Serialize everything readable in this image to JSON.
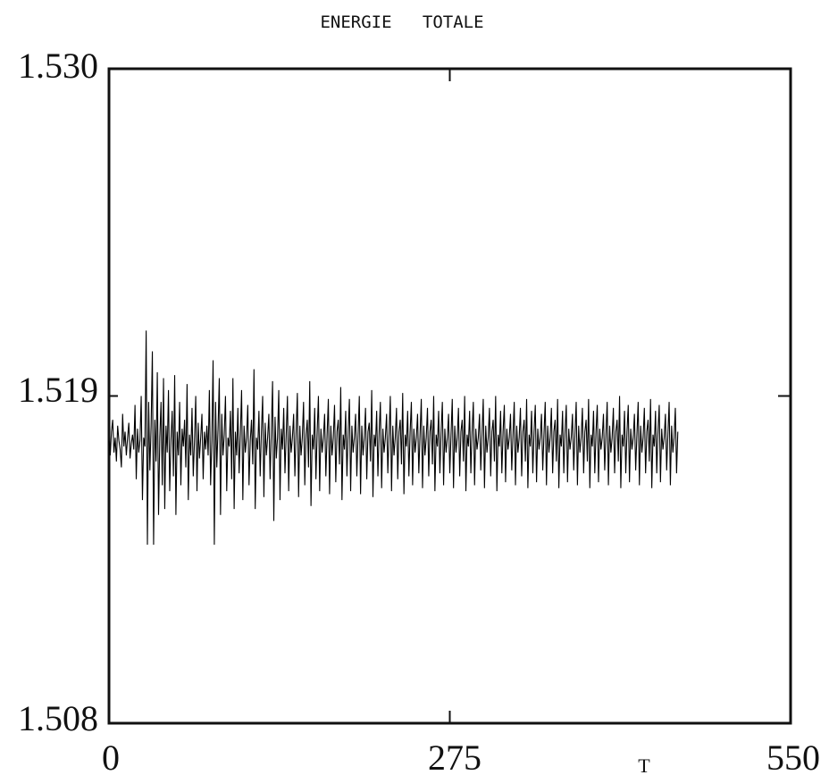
{
  "chart_data": {
    "type": "line",
    "title": "ENERGIE   TOTALE",
    "xlabel": "T",
    "ylabel": "",
    "xlim": [
      0,
      550
    ],
    "ylim": [
      1.508,
      1.53
    ],
    "xticks": [
      "0",
      "275",
      "550"
    ],
    "yticks": [
      "1.530",
      "1.519",
      "1.508"
    ],
    "grid": false,
    "legend": "none",
    "series": [
      {
        "color": "#000000",
        "x_start": 0,
        "x_step": 1,
        "values": [
          1.5175,
          1.517,
          1.5178,
          1.5182,
          1.5171,
          1.5176,
          1.5168,
          1.518,
          1.5175,
          1.5172,
          1.5166,
          1.5184,
          1.5173,
          1.5178,
          1.517,
          1.5176,
          1.5181,
          1.5169,
          1.5174,
          1.5177,
          1.5172,
          1.5187,
          1.5162,
          1.5179,
          1.5171,
          1.5175,
          1.519,
          1.5155,
          1.5176,
          1.5173,
          1.5212,
          1.514,
          1.5188,
          1.5165,
          1.518,
          1.5205,
          1.514,
          1.5182,
          1.5168,
          1.5198,
          1.515,
          1.5176,
          1.5188,
          1.516,
          1.5196,
          1.5152,
          1.518,
          1.5171,
          1.5192,
          1.5158,
          1.5175,
          1.5185,
          1.5163,
          1.5197,
          1.515,
          1.5178,
          1.517,
          1.5188,
          1.516,
          1.5179,
          1.5173,
          1.5182,
          1.5166,
          1.5194,
          1.5155,
          1.5177,
          1.517,
          1.5186,
          1.5163,
          1.5175,
          1.519,
          1.5158,
          1.5181,
          1.5169,
          1.5176,
          1.5184,
          1.5162,
          1.5178,
          1.5172,
          1.518,
          1.517,
          1.5192,
          1.516,
          1.5175,
          1.5202,
          1.514,
          1.5188,
          1.5166,
          1.5179,
          1.5196,
          1.515,
          1.5184,
          1.517,
          1.5177,
          1.519,
          1.5158,
          1.5176,
          1.5173,
          1.5185,
          1.5162,
          1.5196,
          1.5152,
          1.5178,
          1.517,
          1.5186,
          1.5164,
          1.5177,
          1.5192,
          1.5155,
          1.518,
          1.5171,
          1.5176,
          1.5187,
          1.516,
          1.5175,
          1.5182,
          1.5167,
          1.5199,
          1.5152,
          1.5176,
          1.5172,
          1.5185,
          1.5163,
          1.5178,
          1.519,
          1.5156,
          1.5181,
          1.517,
          1.5176,
          1.5184,
          1.5162,
          1.5178,
          1.5195,
          1.5148,
          1.5183,
          1.5169,
          1.5176,
          1.5192,
          1.5155,
          1.5179,
          1.5172,
          1.5186,
          1.5164,
          1.5177,
          1.519,
          1.5158,
          1.518,
          1.5171,
          1.5176,
          1.5184,
          1.5163,
          1.5178,
          1.5191,
          1.5156,
          1.518,
          1.517,
          1.5176,
          1.5188,
          1.516,
          1.5177,
          1.5182,
          1.5166,
          1.5195,
          1.5153,
          1.5177,
          1.5172,
          1.5186,
          1.5162,
          1.5178,
          1.519,
          1.5158,
          1.5179,
          1.5171,
          1.5176,
          1.5184,
          1.5163,
          1.5177,
          1.5189,
          1.5157,
          1.518,
          1.517,
          1.5176,
          1.5187,
          1.5161,
          1.5178,
          1.5182,
          1.5167,
          1.5193,
          1.5155,
          1.5177,
          1.5172,
          1.5185,
          1.5163,
          1.5178,
          1.5189,
          1.5158,
          1.518,
          1.5171,
          1.5176,
          1.5184,
          1.5163,
          1.5177,
          1.519,
          1.5157,
          1.518,
          1.517,
          1.5176,
          1.5186,
          1.5162,
          1.5178,
          1.5181,
          1.5168,
          1.5192,
          1.5156,
          1.5177,
          1.5173,
          1.5185,
          1.5163,
          1.5178,
          1.5188,
          1.5159,
          1.5179,
          1.5171,
          1.5176,
          1.5184,
          1.5164,
          1.5177,
          1.519,
          1.5158,
          1.518,
          1.517,
          1.5176,
          1.5186,
          1.5162,
          1.5178,
          1.5182,
          1.5167,
          1.5191,
          1.5157,
          1.5177,
          1.5173,
          1.5185,
          1.5163,
          1.5178,
          1.5188,
          1.516,
          1.5179,
          1.5171,
          1.5176,
          1.5184,
          1.5164,
          1.5177,
          1.5189,
          1.5159,
          1.518,
          1.517,
          1.5176,
          1.5186,
          1.5163,
          1.5178,
          1.5182,
          1.5167,
          1.519,
          1.5158,
          1.5177,
          1.5173,
          1.5185,
          1.5164,
          1.5178,
          1.5188,
          1.516,
          1.5179,
          1.5171,
          1.5176,
          1.5184,
          1.5164,
          1.5177,
          1.5189,
          1.5159,
          1.518,
          1.5171,
          1.5176,
          1.5186,
          1.5163,
          1.5178,
          1.5182,
          1.5168,
          1.519,
          1.5158,
          1.5177,
          1.5173,
          1.5185,
          1.5164,
          1.5178,
          1.5188,
          1.516,
          1.5179,
          1.5172,
          1.5176,
          1.5184,
          1.5165,
          1.5177,
          1.5189,
          1.5159,
          1.518,
          1.5171,
          1.5176,
          1.5186,
          1.5163,
          1.5178,
          1.5182,
          1.5168,
          1.519,
          1.5158,
          1.5177,
          1.5173,
          1.5185,
          1.5164,
          1.5178,
          1.5187,
          1.5161,
          1.5179,
          1.5172,
          1.5176,
          1.5184,
          1.5165,
          1.5177,
          1.5188,
          1.516,
          1.518,
          1.5171,
          1.5176,
          1.5186,
          1.5163,
          1.5178,
          1.5182,
          1.5168,
          1.5189,
          1.5159,
          1.5177,
          1.5173,
          1.5185,
          1.5164,
          1.5178,
          1.5187,
          1.5161,
          1.5179,
          1.5172,
          1.5176,
          1.5184,
          1.5165,
          1.5177,
          1.5188,
          1.516,
          1.518,
          1.5171,
          1.5176,
          1.5186,
          1.5164,
          1.5178,
          1.5182,
          1.5168,
          1.5189,
          1.5159,
          1.5177,
          1.5173,
          1.5185,
          1.5164,
          1.5178,
          1.5187,
          1.5161,
          1.5179,
          1.5172,
          1.5176,
          1.5184,
          1.5165,
          1.5177,
          1.5188,
          1.516,
          1.518,
          1.5171,
          1.5176,
          1.5186,
          1.5164,
          1.5178,
          1.5182,
          1.5168,
          1.5189,
          1.5159,
          1.5177,
          1.5173,
          1.5185,
          1.5164,
          1.5178,
          1.5187,
          1.5161,
          1.5179,
          1.5172,
          1.5176,
          1.5184,
          1.5165,
          1.5177,
          1.5188,
          1.516,
          1.518,
          1.5171,
          1.5176,
          1.5186,
          1.5164,
          1.5178,
          1.5182,
          1.5168,
          1.519,
          1.5159,
          1.5177,
          1.5173,
          1.5185,
          1.5164,
          1.5178,
          1.5187,
          1.5161,
          1.5179,
          1.5172,
          1.5176,
          1.5184,
          1.5165,
          1.5177,
          1.5188,
          1.516,
          1.518,
          1.5171,
          1.5176,
          1.5186,
          1.5164,
          1.5178,
          1.5182,
          1.5168,
          1.5189,
          1.5159,
          1.5177,
          1.5173,
          1.5185,
          1.5164,
          1.5178,
          1.5187,
          1.5161,
          1.5179,
          1.5172,
          1.5176,
          1.5184,
          1.5165,
          1.5177,
          1.5188,
          1.516,
          1.518,
          1.5171,
          1.5176,
          1.5186,
          1.5164,
          1.5178
        ]
      }
    ]
  }
}
